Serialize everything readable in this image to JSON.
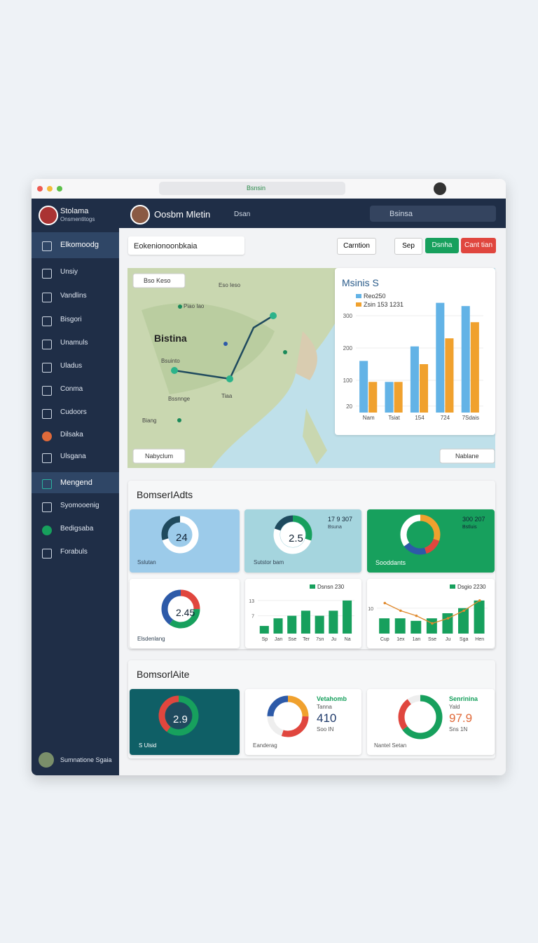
{
  "browser": {
    "url": "Bsnsin"
  },
  "sidebar": {
    "user": {
      "name": "Stolama",
      "role": "Onsmentitogs"
    },
    "items": [
      "Elkomoodg",
      "Unsiy",
      "Vandlins",
      "Bisgori",
      "Unamuls",
      "Uladus",
      "Conma",
      "Cudoors",
      "Dilsaka",
      "Ulsgana",
      "Mengend",
      "Syomooenig",
      "Bedigsaba",
      "Forabuls"
    ],
    "footer": "Sumnatione Sgaia"
  },
  "header": {
    "name": "Oosbm Mletin",
    "link": "Dsan",
    "search": "Bsinsa"
  },
  "toolbar": {
    "search": "Eokenionoonbkaia",
    "select": "Carntion",
    "buttons": [
      "Sep",
      "Dsnha",
      "Cant tian"
    ]
  },
  "map": {
    "title": "Bistina",
    "layer": "Bso Keso",
    "filter": "Nabyclum",
    "view": "Nablane",
    "labels": [
      "Eso Ieso",
      "Piao Iao",
      "Bsuinto",
      "Tiaa",
      "Bssnnge",
      "Biang"
    ]
  },
  "chart_data": [
    {
      "type": "bar",
      "title": "Msinis S",
      "categories": [
        "Nam",
        "Tsiat",
        "154",
        "724",
        "7Sdais"
      ],
      "series": [
        {
          "name": "Reo250",
          "color": "#63b3e6",
          "values": [
            160,
            95,
            205,
            340,
            330
          ]
        },
        {
          "name": "Zsin 153 1231",
          "color": "#f0a12e",
          "values": [
            95,
            95,
            150,
            230,
            280
          ]
        }
      ],
      "ylim": [
        0,
        350
      ],
      "yticks": [
        20,
        100,
        200,
        300
      ]
    },
    {
      "type": "bar",
      "categories": [
        "Sp",
        "Jan",
        "Sse",
        "Ter",
        "7sn",
        "Ju",
        "Na"
      ],
      "series": [
        {
          "name": "Dsnsn 230",
          "color": "#17a05d",
          "values": [
            3,
            6,
            7,
            9,
            7,
            9,
            13
          ]
        }
      ],
      "ylim": [
        0,
        16
      ],
      "yticks": [
        7,
        13
      ]
    },
    {
      "type": "bar",
      "categories": [
        "Cup",
        "1ex",
        "1an",
        "Sse",
        "Ju",
        "Sga",
        "Hen"
      ],
      "series": [
        {
          "name": "Dsgio 2230",
          "color": "#17a05d",
          "values": [
            6,
            6,
            5,
            6,
            8,
            10,
            13
          ]
        },
        {
          "type": "line",
          "color": "#e08a2e",
          "values": [
            12,
            9,
            7,
            4,
            6,
            9,
            13
          ]
        }
      ],
      "ylim": [
        0,
        16
      ],
      "yticks": [
        10
      ]
    }
  ],
  "sections": [
    {
      "title": "BomserIAdts",
      "cards": [
        {
          "value": "24",
          "caption": "Sslutan"
        },
        {
          "value": "2.5",
          "caption": "Sutstor bam",
          "meta": [
            "17 9 307",
            "Bsuna"
          ]
        },
        {
          "caption": "Sooddants",
          "meta": [
            "300 207",
            "Bstluis"
          ]
        },
        {
          "value": "2.45",
          "caption": "Elsdenlang"
        }
      ]
    },
    {
      "title": "BomsorlAite",
      "cards": [
        {
          "value": "2.9",
          "caption": "S Ulsid"
        },
        {
          "value": "410",
          "caption": "Eanderag",
          "meta": [
            "Vetahomb",
            "Tanna"
          ],
          "note": "Soo IN"
        },
        {
          "value": "97.9",
          "caption": "Nantel Setan",
          "meta": [
            "Senrinina",
            "Yald"
          ],
          "note": "Sns 1N"
        }
      ]
    }
  ]
}
